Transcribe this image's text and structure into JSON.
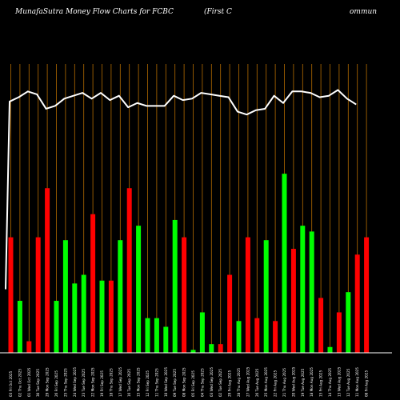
{
  "chart_data": {
    "type": "bar",
    "title_left": "MunafaSutra  Money Flow  Charts for FCBC",
    "title_mid": "(First C",
    "title_right": "ommun",
    "colors": {
      "background": "#000000",
      "up": "#00ff00",
      "down": "#ff0000",
      "grid": "#b36b00",
      "line": "#ffffff",
      "baseline": "#ffffff"
    },
    "ylim": [
      0,
      100
    ],
    "categories": [
      "03 Fri Oct 2025",
      "02 Thu Oct 2025",
      "01 Wed Oct 2025",
      "30 Tue Sep 2025",
      "29 Mon Sep 2025",
      "26 Fri Sep 2025",
      "25 Thu Sep 2025",
      "24 Wed Sep 2025",
      "23 Tue Sep 2025",
      "22 Mon Sep 2025",
      "19 Fri Sep 2025",
      "18 Thu Sep 2025",
      "17 Wed Sep 2025",
      "16 Tue Sep 2025",
      "15 Mon Sep 2025",
      "12 Fri Sep 2025",
      "11 Thu Sep 2025",
      "10 Wed Sep 2025",
      "09 Tue Sep 2025",
      "08 Mon Sep 2025",
      "05 Fri Sep 2025",
      "04 Thu Sep 2025",
      "03 Wed Sep 2025",
      "02 Tue Sep 2025",
      "29 Fri Aug 2025",
      "28 Thu Aug 2025",
      "27 Wed Aug 2025",
      "26 Tue Aug 2025",
      "25 Mon Aug 2025",
      "22 Fri Aug 2025",
      "21 Thu Aug 2025",
      "20 Wed Aug 2025",
      "19 Tue Aug 2025",
      "18 Mon Aug 2025",
      "15 Fri Aug 2025",
      "14 Thu Aug 2025",
      "13 Wed Aug 2025",
      "12 Tue Aug 2025",
      "11 Mon Aug 2025",
      "08 Fri Aug 2025"
    ],
    "bar_values": [
      40,
      18,
      4,
      40,
      57,
      18,
      39,
      24,
      27,
      48,
      25,
      25,
      39,
      57,
      44,
      12,
      12,
      9,
      46,
      40,
      1,
      14,
      3,
      3,
      27,
      11,
      40,
      12,
      39,
      11,
      62,
      36,
      44,
      42,
      19,
      2,
      14,
      21,
      34,
      40
    ],
    "bar_direction": [
      "down",
      "up",
      "down",
      "down",
      "down",
      "up",
      "up",
      "up",
      "up",
      "down",
      "up",
      "down",
      "up",
      "down",
      "up",
      "up",
      "up",
      "up",
      "up",
      "down",
      "up",
      "up",
      "up",
      "down",
      "down",
      "up",
      "down",
      "down",
      "up",
      "down",
      "up",
      "down",
      "up",
      "up",
      "down",
      "up",
      "down",
      "up",
      "down",
      "down"
    ],
    "line_values": [
      87,
      88.5,
      90.5,
      89.5,
      84.5,
      85.5,
      88,
      89,
      90,
      88,
      90,
      87.5,
      89,
      85,
      86.5,
      85.5,
      85.5,
      85.5,
      89,
      87.5,
      88,
      90,
      89.5,
      89,
      88.5,
      83.5,
      82.5,
      84,
      84.5,
      89,
      86.5,
      90.5,
      90.5,
      90,
      88.5,
      89,
      91,
      88,
      86
    ],
    "line_start_value": 22
  }
}
